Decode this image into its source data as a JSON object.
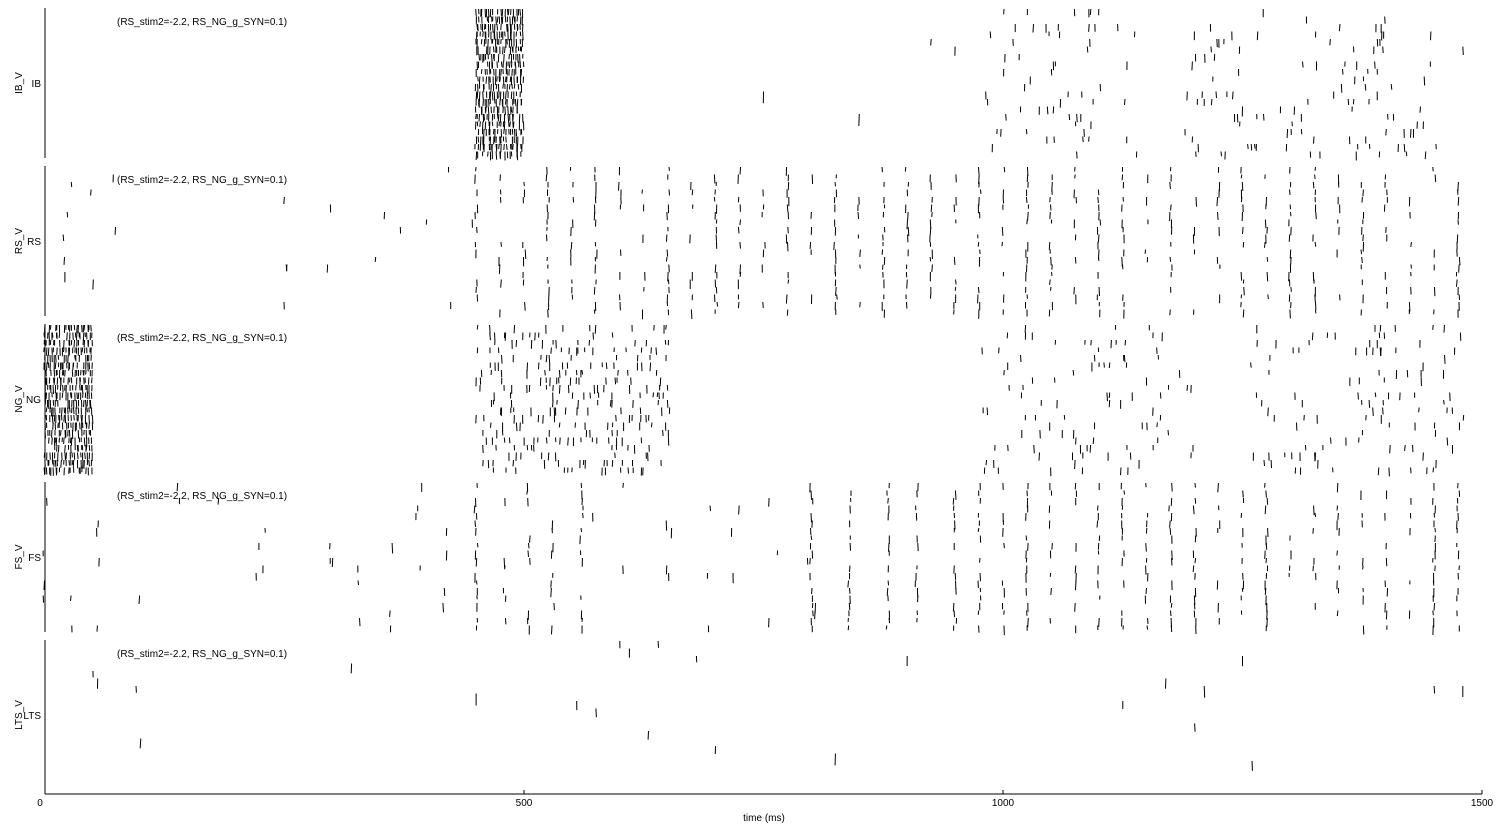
{
  "chart_data": {
    "type": "scatter",
    "description_kind": "spike raster",
    "xlabel": "time (ms)",
    "xlim": [
      0,
      1500
    ],
    "xticks": [
      0,
      500,
      1000,
      1500
    ],
    "annotation": "(RS_stim2=-2.2, RS_NG_g_SYN=0.1)",
    "panels": [
      {
        "ylabel": "IB_V",
        "population": "IB",
        "bursts": [
          {
            "start": 450,
            "end": 500,
            "density": "dense"
          },
          {
            "start": 980,
            "end": 1100,
            "density": "sparse"
          },
          {
            "start": 1120,
            "end": 1140,
            "density": "sparse"
          },
          {
            "start": 1190,
            "end": 1270,
            "density": "sparse"
          },
          {
            "start": 1290,
            "end": 1450,
            "density": "sparse"
          }
        ],
        "isolated_spikes_ms": [
          750,
          850,
          925,
          950,
          1250,
          1480
        ]
      },
      {
        "ylabel": "RS_V",
        "population": "RS",
        "population_events_ms": [
          450,
          475,
          500,
          525,
          550,
          575,
          600,
          625,
          650,
          675,
          700,
          725,
          750,
          775,
          800,
          825,
          850,
          875,
          900,
          925,
          950,
          975,
          1000,
          1025,
          1050,
          1075,
          1100,
          1125,
          1150,
          1175,
          1200,
          1225,
          1250,
          1275,
          1300,
          1325,
          1350,
          1375,
          1400,
          1425,
          1450,
          1475
        ],
        "scattered_activity_ms": [
          20,
          25,
          50,
          75,
          250,
          300,
          350,
          375,
          400,
          425,
          450
        ]
      },
      {
        "ylabel": "NG_V",
        "population": "NG",
        "bursts": [
          {
            "start": 0,
            "end": 50,
            "density": "dense"
          },
          {
            "start": 450,
            "end": 650,
            "density": "medium"
          },
          {
            "start": 980,
            "end": 1200,
            "density": "sparse"
          },
          {
            "start": 1260,
            "end": 1480,
            "density": "sparse"
          }
        ]
      },
      {
        "ylabel": "FS_V",
        "population": "FS",
        "population_events_ms": [
          450,
          480,
          505,
          530,
          560,
          800,
          840,
          880,
          910,
          950,
          975,
          1000,
          1025,
          1050,
          1075,
          1100,
          1125,
          1150,
          1175,
          1200,
          1225,
          1250,
          1275,
          1300,
          1325,
          1350,
          1375,
          1400,
          1425,
          1450,
          1475
        ],
        "scattered_activity_ms": [
          0,
          25,
          55,
          100,
          140,
          180,
          225,
          300,
          330,
          360,
          390,
          420,
          570,
          600,
          650,
          690,
          720,
          760,
          800
        ]
      },
      {
        "ylabel": "LTS_V",
        "population": "LTS",
        "isolated_spikes_ms": [
          50,
          55,
          95,
          100,
          320,
          450,
          555,
          575,
          600,
          610,
          630,
          640,
          680,
          700,
          825,
          900,
          1125,
          1170,
          1200,
          1210,
          1250,
          1260,
          1450,
          1480
        ]
      }
    ]
  }
}
